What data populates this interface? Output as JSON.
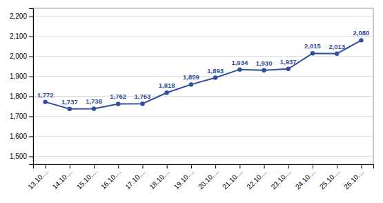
{
  "chart_data": {
    "type": "line",
    "categories": [
      "13.10....",
      "14.10....",
      "15.10....",
      "16.10....",
      "17.10....",
      "18.10....",
      "19.10....",
      "20.10....",
      "21.10....",
      "22.10....",
      "23.10....",
      "24.10....",
      "25.10....",
      "26.10...."
    ],
    "values": [
      1772,
      1737,
      1738,
      1762,
      1763,
      1818,
      1859,
      1893,
      1934,
      1930,
      1937,
      2015,
      2013,
      2080
    ],
    "value_labels": [
      "1,772",
      "1,737",
      "1,738",
      "1,762",
      "1,763",
      "1,818",
      "1,859",
      "1,893",
      "1,934",
      "1,930",
      "1,937",
      "2,015",
      "2,013",
      "2,080"
    ],
    "color": "#2E4EA0",
    "marker": "circle",
    "ylim": [
      1460,
      2240
    ],
    "yticks": [
      {
        "value": 1500,
        "label": "1,500"
      },
      {
        "value": 1600,
        "label": "1,600"
      },
      {
        "value": 1700,
        "label": "1,700"
      },
      {
        "value": 1800,
        "label": "1,800"
      },
      {
        "value": 1900,
        "label": "1,900"
      },
      {
        "value": 2000,
        "label": "2,000"
      },
      {
        "value": 2100,
        "label": "2,100"
      },
      {
        "value": 2200,
        "label": "2,200"
      }
    ],
    "grid": true,
    "data_labels": true
  }
}
